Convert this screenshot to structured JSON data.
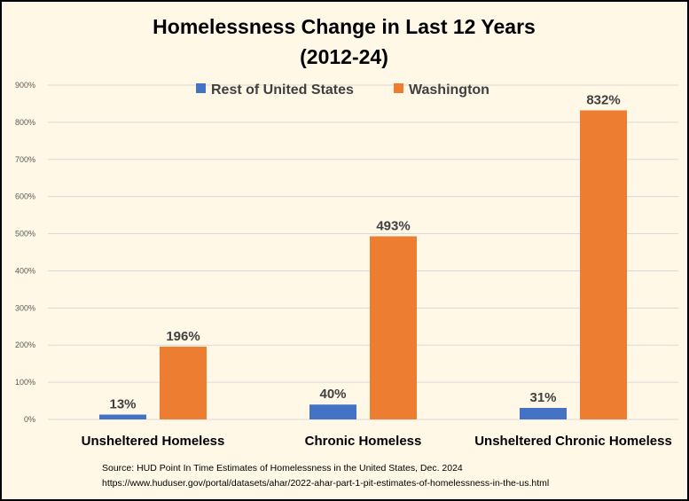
{
  "colors": {
    "background": "#fff8e6",
    "border": "#000000",
    "grid": "#d9d9d9",
    "axis_text": "#595959",
    "label_text": "#404040"
  },
  "chart_data": {
    "type": "bar",
    "title": "Homelessness Change in Last 12 Years",
    "subtitle": "(2012-24)",
    "xlabel": "",
    "ylabel": "",
    "categories": [
      "Unsheltered Homeless",
      "Chronic Homeless",
      "Unsheltered Chronic Homeless"
    ],
    "series": [
      {
        "name": "Rest of United States",
        "color": "#4472c4",
        "values": [
          13,
          40,
          31
        ],
        "labels": [
          "13%",
          "40%",
          "31%"
        ]
      },
      {
        "name": "Washington",
        "color": "#ed7d31",
        "values": [
          196,
          493,
          832
        ],
        "labels": [
          "196%",
          "493%",
          "832%"
        ]
      }
    ],
    "yticks": [
      0,
      100,
      200,
      300,
      400,
      500,
      600,
      700,
      800,
      900
    ],
    "ytick_labels": [
      "0%",
      "100%",
      "200%",
      "300%",
      "400%",
      "500%",
      "600%",
      "700%",
      "800%",
      "900%"
    ],
    "ylim": [
      0,
      900
    ],
    "grid": true,
    "legend_position": "top-center"
  },
  "source": {
    "line1": "Source: HUD Point In Time Estimates of Homelessness in the United States, Dec. 2024",
    "line2": "https://www.huduser.gov/portal/datasets/ahar/2022-ahar-part-1-pit-estimates-of-homelessness-in-the-us.html"
  }
}
